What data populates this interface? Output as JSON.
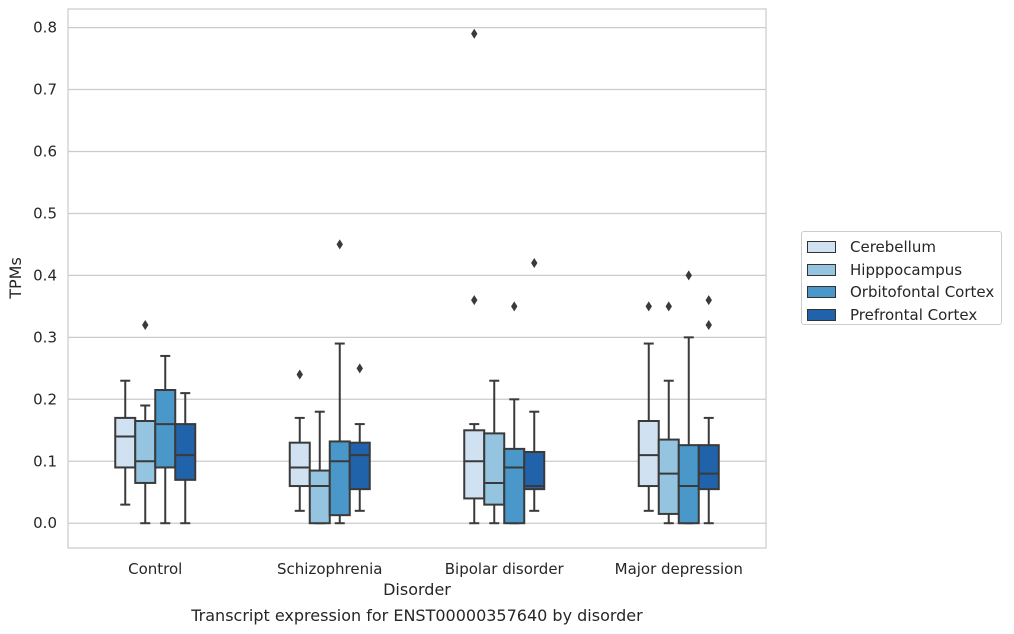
{
  "caption": "Transcript expression for ENST00000357640 by disorder",
  "chart_data": {
    "type": "box",
    "xlabel": "Disorder",
    "ylabel": "TPMs",
    "ylim": [
      -0.04,
      0.83
    ],
    "yticks": [
      "0.0",
      "0.1",
      "0.2",
      "0.3",
      "0.4",
      "0.5",
      "0.6",
      "0.7",
      "0.8"
    ],
    "categories": [
      "Control",
      "Schizophrenia",
      "Bipolar disorder",
      "Major depression"
    ],
    "grid": "horizontal",
    "legend_position": "right",
    "series": [
      {
        "name": "Cerebellum",
        "color": "#d0e1f2",
        "boxes": [
          {
            "whislo": 0.03,
            "q1": 0.09,
            "med": 0.14,
            "q3": 0.17,
            "whishi": 0.23,
            "fliers": []
          },
          {
            "whislo": 0.02,
            "q1": 0.06,
            "med": 0.09,
            "q3": 0.13,
            "whishi": 0.17,
            "fliers": [
              0.24
            ]
          },
          {
            "whislo": 0.0,
            "q1": 0.04,
            "med": 0.1,
            "q3": 0.15,
            "whishi": 0.16,
            "fliers": [
              0.36,
              0.79
            ]
          },
          {
            "whislo": 0.02,
            "q1": 0.06,
            "med": 0.11,
            "q3": 0.165,
            "whishi": 0.29,
            "fliers": [
              0.35
            ]
          }
        ]
      },
      {
        "name": "Hipppocampus",
        "color": "#94c4df",
        "boxes": [
          {
            "whislo": 0.0,
            "q1": 0.065,
            "med": 0.1,
            "q3": 0.165,
            "whishi": 0.19,
            "fliers": [
              0.32
            ]
          },
          {
            "whislo": 0.0,
            "q1": 0.0,
            "med": 0.06,
            "q3": 0.085,
            "whishi": 0.18,
            "fliers": []
          },
          {
            "whislo": 0.0,
            "q1": 0.03,
            "med": 0.065,
            "q3": 0.145,
            "whishi": 0.23,
            "fliers": []
          },
          {
            "whislo": 0.0,
            "q1": 0.015,
            "med": 0.08,
            "q3": 0.135,
            "whishi": 0.23,
            "fliers": [
              0.35
            ]
          }
        ]
      },
      {
        "name": "Orbitofontal Cortex",
        "color": "#4a98c9",
        "boxes": [
          {
            "whislo": 0.0,
            "q1": 0.09,
            "med": 0.16,
            "q3": 0.215,
            "whishi": 0.27,
            "fliers": []
          },
          {
            "whislo": 0.0,
            "q1": 0.013,
            "med": 0.1,
            "q3": 0.132,
            "whishi": 0.29,
            "fliers": [
              0.45
            ]
          },
          {
            "whislo": 0.0,
            "q1": 0.0,
            "med": 0.09,
            "q3": 0.12,
            "whishi": 0.2,
            "fliers": [
              0.35
            ]
          },
          {
            "whislo": 0.0,
            "q1": 0.0,
            "med": 0.06,
            "q3": 0.126,
            "whishi": 0.3,
            "fliers": [
              0.4
            ]
          }
        ]
      },
      {
        "name": "Prefrontal Cortex",
        "color": "#2163aa",
        "boxes": [
          {
            "whislo": 0.0,
            "q1": 0.07,
            "med": 0.11,
            "q3": 0.16,
            "whishi": 0.21,
            "fliers": []
          },
          {
            "whislo": 0.02,
            "q1": 0.055,
            "med": 0.11,
            "q3": 0.13,
            "whishi": 0.16,
            "fliers": [
              0.25
            ]
          },
          {
            "whislo": 0.02,
            "q1": 0.055,
            "med": 0.06,
            "q3": 0.115,
            "whishi": 0.18,
            "fliers": [
              0.42
            ]
          },
          {
            "whislo": 0.0,
            "q1": 0.055,
            "med": 0.08,
            "q3": 0.126,
            "whishi": 0.17,
            "fliers": [
              0.32,
              0.36
            ]
          }
        ]
      }
    ]
  }
}
